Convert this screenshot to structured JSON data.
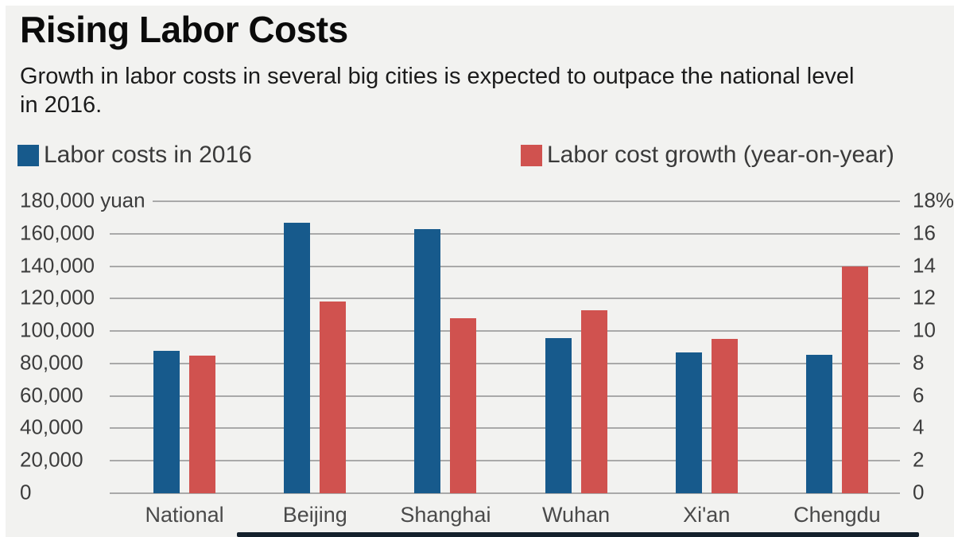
{
  "header": {
    "title": "Rising Labor Costs",
    "subtitle": "Growth in labor costs in several big cities is expected to outpace the national level in 2016."
  },
  "legend": {
    "position": "top",
    "items": [
      {
        "label": "Labor costs in 2016",
        "color": "#175a8c",
        "swatch": "blue-square-icon"
      },
      {
        "label": "Labor cost growth (year-on-year)",
        "color": "#d0524f",
        "swatch": "red-square-icon"
      }
    ]
  },
  "chart_data": {
    "type": "bar",
    "categories": [
      "National",
      "Beijing",
      "Shanghai",
      "Wuhan",
      "Xi'an",
      "Chengdu"
    ],
    "series": [
      {
        "name": "Labor costs in 2016",
        "axis": "left",
        "unit": "yuan",
        "color": "#175a8c",
        "values": [
          88000,
          167000,
          163000,
          95500,
          87000,
          85500
        ]
      },
      {
        "name": "Labor cost growth (year-on-year)",
        "axis": "right",
        "unit": "%",
        "color": "#d0524f",
        "values": [
          8.5,
          11.8,
          10.8,
          11.3,
          9.5,
          14.0
        ]
      }
    ],
    "left_axis": {
      "min": 0,
      "max": 180000,
      "ticks": [
        "180,000 yuan",
        "160,000",
        "140,000",
        "120,000",
        "100,000",
        "80,000",
        "60,000",
        "40,000",
        "20,000",
        "0"
      ]
    },
    "right_axis": {
      "min": 0,
      "max": 18,
      "ticks": [
        "18%",
        "16",
        "14",
        "12",
        "10",
        "8",
        "6",
        "4",
        "2",
        "0"
      ]
    },
    "grid": true,
    "legend_position": "top"
  },
  "colors": {
    "background": "#f2f2f0",
    "gridline": "#a9a9a9",
    "title_text": "#0b0b0b",
    "subtitle_text": "#1b1b1b",
    "tick_text": "#3c3c3c",
    "category_text": "#4a4a4a",
    "legend_text": "#3a3a3a",
    "bar_blue": "#175a8c",
    "bar_red": "#d0524f",
    "bottom_bar": "#14202c"
  }
}
